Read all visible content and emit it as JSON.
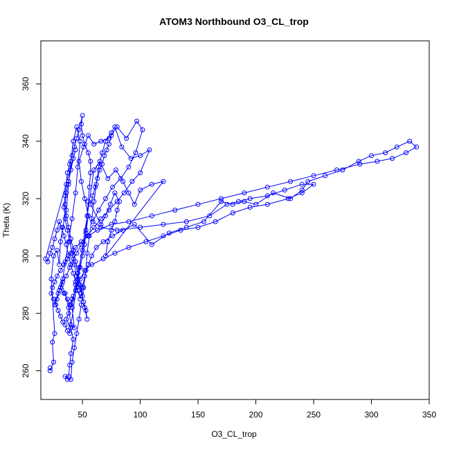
{
  "chart_data": {
    "type": "scatter",
    "title": "ATOM3 Northbound O3_CL_trop",
    "xlabel": "O3_CL_trop",
    "ylabel": "Theta (K)",
    "xlim": [
      14,
      350
    ],
    "ylim": [
      250,
      375
    ],
    "xticks": [
      "50",
      "100",
      "150",
      "200",
      "250",
      "300",
      "350"
    ],
    "xtick_values": [
      50,
      100,
      150,
      200,
      250,
      300,
      350
    ],
    "yticks": [
      "260",
      "280",
      "300",
      "320",
      "340",
      "360"
    ],
    "ytick_values": [
      260,
      280,
      300,
      320,
      340,
      360
    ],
    "grid": false,
    "marker": "open-circle",
    "line": true,
    "color": "#0000ff",
    "series": [
      {
        "values_xy": [
          [
            22,
            261
          ],
          [
            22,
            260
          ],
          [
            25,
            263
          ],
          [
            24,
            270
          ],
          [
            26,
            273
          ],
          [
            23,
            292
          ],
          [
            25,
            300
          ],
          [
            28,
            302
          ],
          [
            30,
            297
          ],
          [
            31,
            305
          ],
          [
            33,
            310
          ],
          [
            36,
            316
          ],
          [
            38,
            325
          ],
          [
            40,
            333
          ],
          [
            42,
            340
          ],
          [
            45,
            345
          ],
          [
            48,
            340
          ],
          [
            46,
            331
          ],
          [
            44,
            322
          ],
          [
            41,
            313
          ],
          [
            38,
            305
          ],
          [
            35,
            298
          ],
          [
            33,
            292
          ],
          [
            30,
            288
          ],
          [
            28,
            285
          ],
          [
            26,
            283
          ],
          [
            29,
            287
          ],
          [
            32,
            290
          ],
          [
            35,
            287
          ],
          [
            38,
            282
          ],
          [
            40,
            276
          ],
          [
            43,
            275
          ],
          [
            41,
            282
          ],
          [
            44,
            290
          ],
          [
            47,
            296
          ],
          [
            50,
            302
          ],
          [
            53,
            308
          ],
          [
            55,
            314
          ],
          [
            52,
            320
          ],
          [
            49,
            326
          ],
          [
            47,
            333
          ],
          [
            51,
            338
          ],
          [
            55,
            342
          ],
          [
            60,
            339
          ],
          [
            66,
            340
          ],
          [
            73,
            341
          ],
          [
            80,
            345
          ],
          [
            88,
            341
          ],
          [
            97,
            347
          ],
          [
            102,
            344
          ],
          [
            96,
            336
          ],
          [
            90,
            331
          ],
          [
            83,
            327
          ],
          [
            76,
            324
          ],
          [
            70,
            320
          ],
          [
            64,
            316
          ],
          [
            59,
            312
          ],
          [
            66,
            310
          ],
          [
            80,
            309
          ],
          [
            100,
            310
          ],
          [
            120,
            311
          ],
          [
            140,
            312
          ],
          [
            160,
            314
          ],
          [
            175,
            318
          ],
          [
            185,
            319
          ],
          [
            195,
            320
          ],
          [
            210,
            321
          ],
          [
            225,
            323
          ],
          [
            240,
            325
          ],
          [
            250,
            325
          ],
          [
            240,
            322
          ],
          [
            228,
            320
          ],
          [
            210,
            318
          ],
          [
            195,
            317
          ],
          [
            180,
            315
          ],
          [
            165,
            312
          ],
          [
            150,
            310
          ],
          [
            135,
            309
          ],
          [
            120,
            307
          ],
          [
            105,
            305
          ],
          [
            90,
            303
          ],
          [
            78,
            301
          ],
          [
            68,
            299
          ],
          [
            58,
            297
          ],
          [
            52,
            295
          ],
          [
            48,
            292
          ],
          [
            45,
            289
          ],
          [
            42,
            286
          ],
          [
            40,
            283
          ],
          [
            38,
            280
          ],
          [
            36,
            278
          ],
          [
            40,
            275
          ],
          [
            42,
            271
          ],
          [
            40,
            266
          ],
          [
            39,
            262
          ],
          [
            38,
            258
          ],
          [
            35,
            258
          ],
          [
            37,
            257
          ],
          [
            40,
            257
          ],
          [
            41,
            263
          ],
          [
            43,
            268
          ],
          [
            45,
            273
          ],
          [
            47,
            278
          ],
          [
            49,
            283
          ],
          [
            51,
            289
          ],
          [
            53,
            295
          ],
          [
            54,
            301
          ],
          [
            56,
            307
          ],
          [
            58,
            313
          ],
          [
            60,
            319
          ],
          [
            62,
            325
          ],
          [
            64,
            331
          ],
          [
            67,
            336
          ],
          [
            70,
            340
          ],
          [
            75,
            343
          ],
          [
            78,
            345
          ],
          [
            84,
            338
          ],
          [
            92,
            334
          ],
          [
            100,
            335
          ],
          [
            108,
            337
          ],
          [
            100,
            329
          ],
          [
            93,
            326
          ],
          [
            86,
            322
          ],
          [
            80,
            319
          ],
          [
            73,
            316
          ],
          [
            66,
            313
          ],
          [
            60,
            310
          ],
          [
            54,
            307
          ],
          [
            49,
            304
          ],
          [
            45,
            301
          ],
          [
            42,
            299
          ],
          [
            39,
            296
          ],
          [
            36,
            293
          ],
          [
            33,
            291
          ],
          [
            31,
            289
          ],
          [
            34,
            287
          ],
          [
            37,
            285
          ],
          [
            39,
            283
          ],
          [
            41,
            285
          ],
          [
            44,
            288
          ],
          [
            46,
            292
          ],
          [
            48,
            296
          ],
          [
            50,
            300
          ],
          [
            52,
            304
          ],
          [
            53,
            309
          ],
          [
            54,
            314
          ],
          [
            55,
            319
          ],
          [
            56,
            324
          ],
          [
            57,
            329
          ],
          [
            57,
            333
          ],
          [
            55,
            336
          ],
          [
            52,
            339
          ],
          [
            50,
            342
          ],
          [
            49,
            346
          ],
          [
            50,
            349
          ],
          [
            47,
            344
          ],
          [
            45,
            341
          ],
          [
            43,
            338
          ],
          [
            41,
            335
          ],
          [
            39,
            332
          ],
          [
            37,
            329
          ],
          [
            36,
            325
          ],
          [
            35,
            321
          ],
          [
            34,
            317
          ],
          [
            35,
            313
          ],
          [
            37,
            309
          ],
          [
            39,
            305
          ],
          [
            41,
            301
          ],
          [
            43,
            297
          ],
          [
            45,
            293
          ],
          [
            47,
            290
          ],
          [
            49,
            287
          ],
          [
            51,
            284
          ],
          [
            53,
            281
          ],
          [
            54,
            278
          ],
          [
            52,
            282
          ],
          [
            50,
            286
          ],
          [
            48,
            290
          ],
          [
            46,
            294
          ],
          [
            44,
            298
          ],
          [
            42,
            302
          ],
          [
            40,
            306
          ],
          [
            38,
            310
          ],
          [
            36,
            314
          ],
          [
            35,
            318
          ],
          [
            36,
            322
          ],
          [
            38,
            326
          ],
          [
            40,
            330
          ],
          [
            42,
            334
          ],
          [
            44,
            337
          ],
          [
            18,
            299
          ],
          [
            20,
            298
          ],
          [
            22,
            301
          ],
          [
            24,
            303
          ],
          [
            26,
            306
          ],
          [
            28,
            309
          ],
          [
            30,
            312
          ],
          [
            32,
            310
          ],
          [
            34,
            307
          ],
          [
            36,
            304
          ],
          [
            38,
            300
          ],
          [
            40,
            297
          ],
          [
            42,
            294
          ],
          [
            44,
            291
          ],
          [
            46,
            288
          ],
          [
            48,
            285
          ],
          [
            50,
            289
          ],
          [
            52,
            293
          ],
          [
            55,
            297
          ],
          [
            58,
            300
          ],
          [
            62,
            303
          ],
          [
            68,
            305
          ],
          [
            76,
            307
          ],
          [
            85,
            309
          ],
          [
            95,
            311
          ],
          [
            110,
            304
          ],
          [
            125,
            308
          ],
          [
            140,
            310
          ],
          [
            155,
            312
          ],
          [
            170,
            319
          ],
          [
            180,
            318
          ],
          [
            190,
            319
          ],
          [
            200,
            318
          ],
          [
            215,
            322
          ],
          [
            230,
            320
          ],
          [
            240,
            323
          ],
          [
            245,
            326
          ],
          [
            260,
            328
          ],
          [
            275,
            330
          ],
          [
            289,
            333
          ],
          [
            300,
            335
          ],
          [
            312,
            336
          ],
          [
            322,
            338
          ],
          [
            333,
            340
          ],
          [
            339,
            338
          ],
          [
            330,
            336
          ],
          [
            318,
            334
          ],
          [
            305,
            333
          ],
          [
            290,
            332
          ],
          [
            270,
            330
          ],
          [
            250,
            328
          ],
          [
            230,
            326
          ],
          [
            210,
            324
          ],
          [
            190,
            322
          ],
          [
            170,
            320
          ],
          [
            150,
            318
          ],
          [
            130,
            316
          ],
          [
            110,
            314
          ],
          [
            90,
            312
          ],
          [
            75,
            311
          ],
          [
            63,
            309
          ],
          [
            55,
            307
          ],
          [
            49,
            305
          ],
          [
            44,
            303
          ],
          [
            40,
            301
          ],
          [
            37,
            299
          ],
          [
            34,
            297
          ],
          [
            31,
            295
          ],
          [
            28,
            293
          ],
          [
            26,
            291
          ],
          [
            24,
            289
          ],
          [
            23,
            287
          ],
          [
            25,
            285
          ],
          [
            27,
            283
          ],
          [
            29,
            281
          ],
          [
            31,
            279
          ],
          [
            33,
            277
          ],
          [
            35,
            276
          ],
          [
            37,
            274
          ],
          [
            39,
            273
          ],
          [
            60,
            330
          ],
          [
            65,
            333
          ],
          [
            72,
            327
          ],
          [
            79,
            330
          ],
          [
            85,
            326
          ],
          [
            90,
            322
          ],
          [
            95,
            318
          ],
          [
            100,
            323
          ],
          [
            110,
            325
          ],
          [
            120,
            326
          ],
          [
            70,
            300
          ],
          [
            72,
            305
          ],
          [
            75,
            309
          ],
          [
            78,
            312
          ],
          [
            80,
            316
          ],
          [
            82,
            319
          ],
          [
            78,
            322
          ],
          [
            74,
            318
          ],
          [
            70,
            314
          ],
          [
            66,
            311
          ],
          [
            57,
            318
          ],
          [
            59,
            321
          ],
          [
            61,
            324
          ],
          [
            63,
            327
          ],
          [
            65,
            330
          ],
          [
            67,
            332
          ],
          [
            69,
            335
          ],
          [
            71,
            337
          ],
          [
            73,
            339
          ],
          [
            75,
            342
          ]
        ]
      }
    ]
  }
}
